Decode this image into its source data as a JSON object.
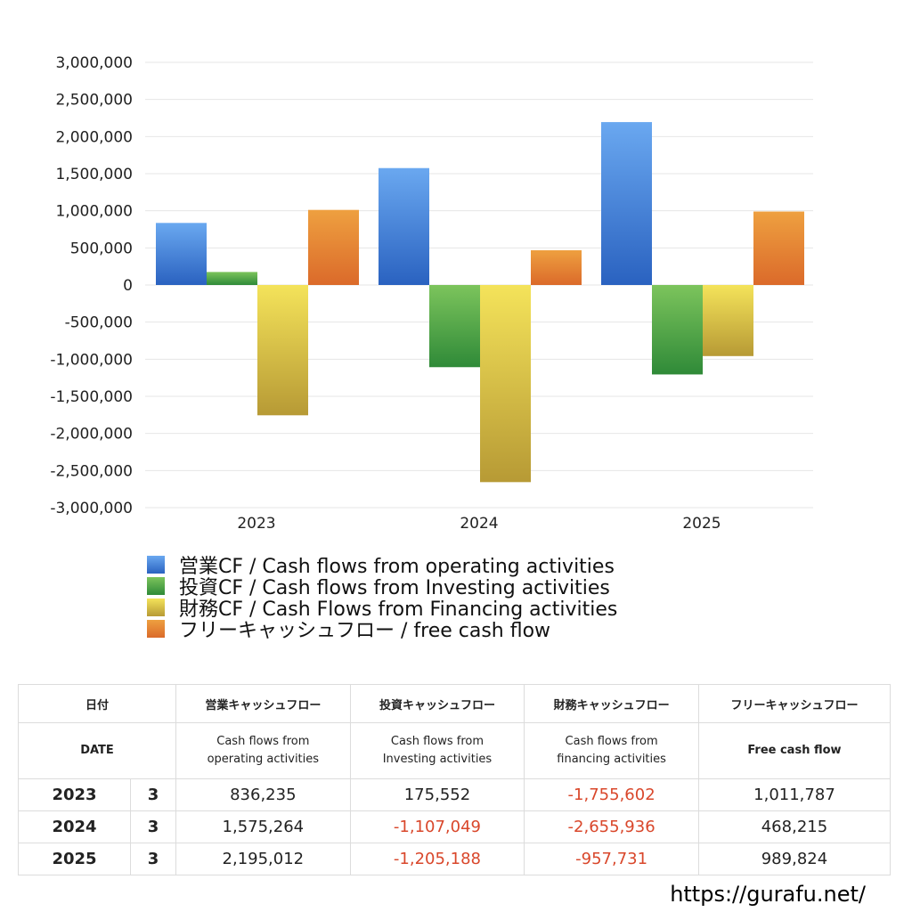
{
  "chart_data": {
    "type": "bar",
    "categories": [
      "2023",
      "2024",
      "2025"
    ],
    "series": [
      {
        "name": "営業CF / Cash flows from operating activities",
        "values": [
          836235,
          1575264,
          2195012
        ],
        "color_top": "#6aa8f0",
        "color_bottom": "#2a62c0"
      },
      {
        "name": "投資CF / Cash flows from Investing activities",
        "values": [
          175552,
          -1107049,
          -1205188
        ],
        "color_top": "#7cc45c",
        "color_bottom": "#2f8a38"
      },
      {
        "name": "財務CF / Cash Flows from Financing activities",
        "values": [
          -1755602,
          -2655936,
          -957731
        ],
        "color_top": "#f4e35a",
        "color_bottom": "#b79a35"
      },
      {
        "name": "フリーキャッシュフロー / free cash flow",
        "values": [
          1011787,
          468215,
          989824
        ],
        "color_top": "#eea040",
        "color_bottom": "#db6a2a"
      }
    ],
    "ylim": [
      -3000000,
      3000000
    ],
    "yticks": [
      "3,000,000",
      "2,500,000",
      "2,000,000",
      "1,500,000",
      "1,000,000",
      "500,000",
      "0",
      "-500,000",
      "-1,000,000",
      "-1,500,000",
      "-2,000,000",
      "-2,500,000",
      "-3,000,000"
    ],
    "grid": true,
    "legend_position": "bottom"
  },
  "table": {
    "header_ja": [
      "日付",
      "営業キャッシュフロー",
      "投資キャッシュフロー",
      "財務キャッシュフロー",
      "フリーキャッシュフロー"
    ],
    "header_en": {
      "date": "DATE",
      "operating_1": "Cash flows from",
      "operating_2": "operating activities",
      "investing_1": "Cash flows from",
      "investing_2": "Investing activities",
      "financing_1": "Cash flows from",
      "financing_2": "financing activities",
      "free": "Free cash flow"
    },
    "rows": [
      {
        "year": "2023",
        "month": "3",
        "operating": "836,235",
        "investing": "175,552",
        "financing": "-1,755,602",
        "free": "1,011,787"
      },
      {
        "year": "2024",
        "month": "3",
        "operating": "1,575,264",
        "investing": "-1,107,049",
        "financing": "-2,655,936",
        "free": "468,215"
      },
      {
        "year": "2025",
        "month": "3",
        "operating": "2,195,012",
        "investing": "-1,205,188",
        "financing": "-957,731",
        "free": "989,824"
      }
    ],
    "negative_color": "#d9472b"
  },
  "site_url": "https://gurafu.net/"
}
